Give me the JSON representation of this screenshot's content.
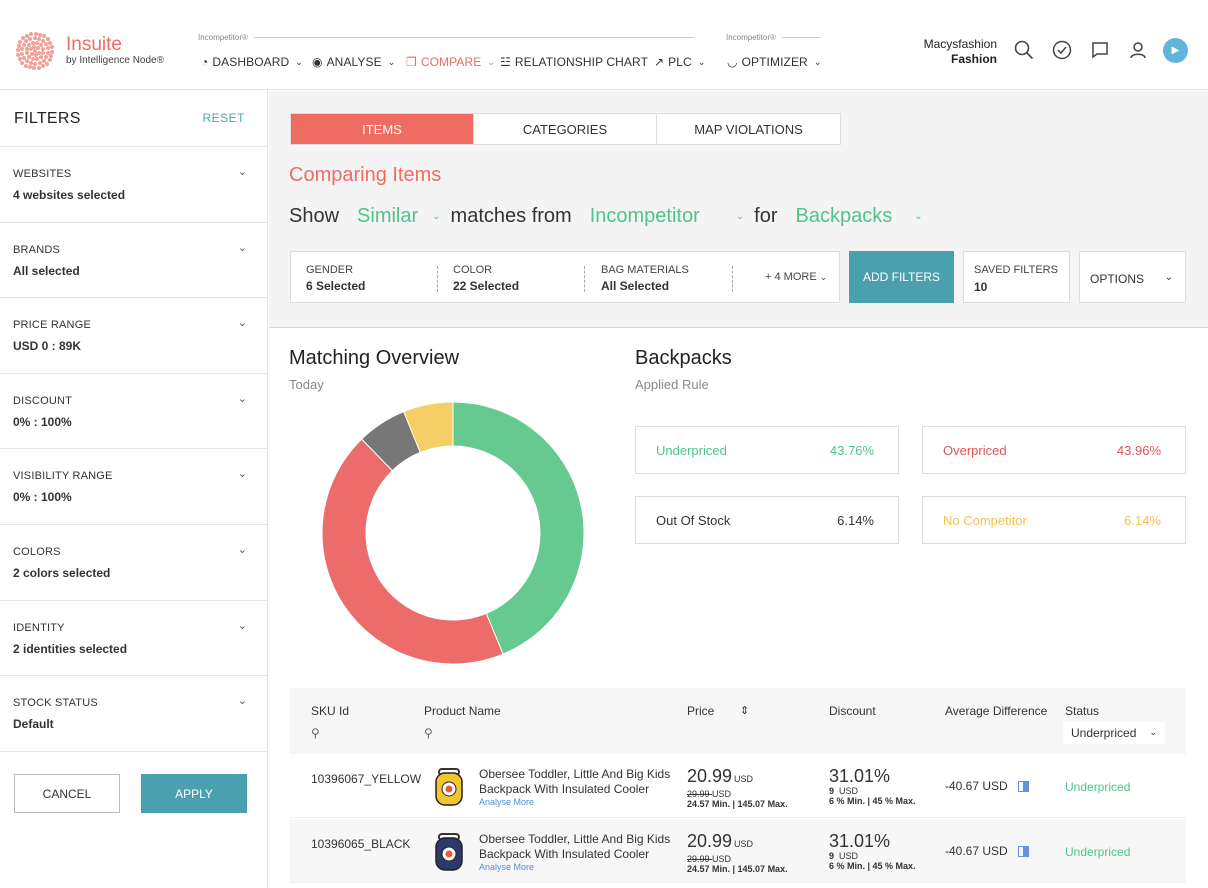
{
  "brand": {
    "name": "Insuite",
    "sub": "by Intelligence Node®"
  },
  "nav": {
    "group1_tag": "Incompetitor®",
    "group2_tag": "Incompetitor®",
    "items": [
      {
        "label": "DASHBOARD",
        "icon": "dashboard-icon"
      },
      {
        "label": "ANALYSE",
        "icon": "eye-icon"
      },
      {
        "label": "COMPARE",
        "icon": "compare-icon"
      },
      {
        "label": "RELATIONSHIP CHART",
        "icon": "relationship-icon"
      },
      {
        "label": "PLC",
        "icon": "line-chart-icon"
      },
      {
        "label": "OPTIMIZER",
        "icon": "gauge-icon"
      }
    ]
  },
  "user": {
    "line1": "Macysfashion",
    "line2": "Fashion"
  },
  "top_icons": [
    "search-icon",
    "history-icon",
    "message-icon",
    "user-icon",
    "play-icon"
  ],
  "sidebar": {
    "title": "FILTERS",
    "reset": "RESET",
    "filters": [
      {
        "label": "WEBSITES",
        "value": "4 websites selected"
      },
      {
        "label": "BRANDS",
        "value": "All selected"
      },
      {
        "label": "PRICE RANGE",
        "value": "USD 0 : 89K"
      },
      {
        "label": "DISCOUNT",
        "value": "0% : 100%"
      },
      {
        "label": "VISIBILITY RANGE",
        "value": "0% : 100%"
      },
      {
        "label": "COLORS",
        "value": "2 colors selected"
      },
      {
        "label": "IDENTITY",
        "value": "2 identities selected"
      },
      {
        "label": "STOCK STATUS",
        "value": "Default"
      }
    ],
    "cancel": "CANCEL",
    "apply": "APPLY"
  },
  "tabs": [
    "ITEMS",
    "CATEGORIES",
    "MAP VIOLATIONS"
  ],
  "comparing_title": "Comparing Items",
  "show_row": {
    "show": "Show",
    "match_type": "Similar",
    "matches_from": "matches from",
    "source": "Incompetitor",
    "for": "for",
    "category": "Backpacks"
  },
  "filter_bar": {
    "gender_label": "GENDER",
    "gender_value": "6 Selected",
    "color_label": "COLOR",
    "color_value": "22 Selected",
    "material_label": "BAG MATERIALS",
    "material_value": "All Selected",
    "more": "+ 4 MORE"
  },
  "add_filters": "ADD FILTERS",
  "saved_filters": {
    "label": "SAVED FILTERS",
    "value": "10"
  },
  "options": "OPTIONS",
  "overview": {
    "title": "Matching Overview",
    "subtitle": "Today"
  },
  "chart_data": {
    "type": "pie",
    "categories": [
      "Underpriced",
      "Overpriced",
      "Out Of Stock",
      "No Competitor"
    ],
    "values": [
      43.76,
      43.96,
      6.14,
      6.14
    ],
    "colors": [
      "#66c98f",
      "#ec6b6b",
      "#777777",
      "#f5ce66"
    ]
  },
  "rule": {
    "title": "Backpacks",
    "subtitle": "Applied Rule",
    "stats": [
      {
        "label": "Underpriced",
        "value": "43.76%",
        "color": "#4fc48a"
      },
      {
        "label": "Overpriced",
        "value": "43.96%",
        "color": "#e25555"
      },
      {
        "label": "Out Of Stock",
        "value": "6.14%",
        "color": "#333333"
      },
      {
        "label": "No Competitor",
        "value": "6.14%",
        "color": "#f2c14e"
      }
    ]
  },
  "table": {
    "headers": {
      "sku": "SKU Id",
      "name": "Product Name",
      "price": "Price",
      "discount": "Discount",
      "avg": "Average Difference",
      "status": "Status"
    },
    "status_filter": "Underpriced",
    "rows": [
      {
        "sku": "10396067_YELLOW",
        "name": "Obersee Toddler, Little And Big Kids Backpack With Insulated Cooler",
        "analyse": "Analyse More",
        "price": "20.99",
        "price_unit": "USD",
        "price_old": "29.99",
        "price_old_unit": "USD",
        "price_minmax": "24.57 Min. | 145.07 Max.",
        "discount": "31.01%",
        "discount_usd": "9",
        "discount_usd_unit": "USD",
        "discount_minmax": "6 % Min. | 45 % Max.",
        "avg": "-40.67 USD",
        "status": "Underpriced",
        "img_color": "#f2c531"
      },
      {
        "sku": "10396065_BLACK",
        "name": "Obersee Toddler, Little And Big Kids Backpack With Insulated Cooler",
        "analyse": "Analyse More",
        "price": "20.99",
        "price_unit": "USD",
        "price_old": "29.99",
        "price_old_unit": "USD",
        "price_minmax": "24.57 Min. | 145.07 Max.",
        "discount": "31.01%",
        "discount_usd": "9",
        "discount_usd_unit": "USD",
        "discount_minmax": "6 % Min. | 45 % Max.",
        "avg": "-40.67 USD",
        "status": "Underpriced",
        "img_color": "#2b3a6b"
      }
    ]
  }
}
